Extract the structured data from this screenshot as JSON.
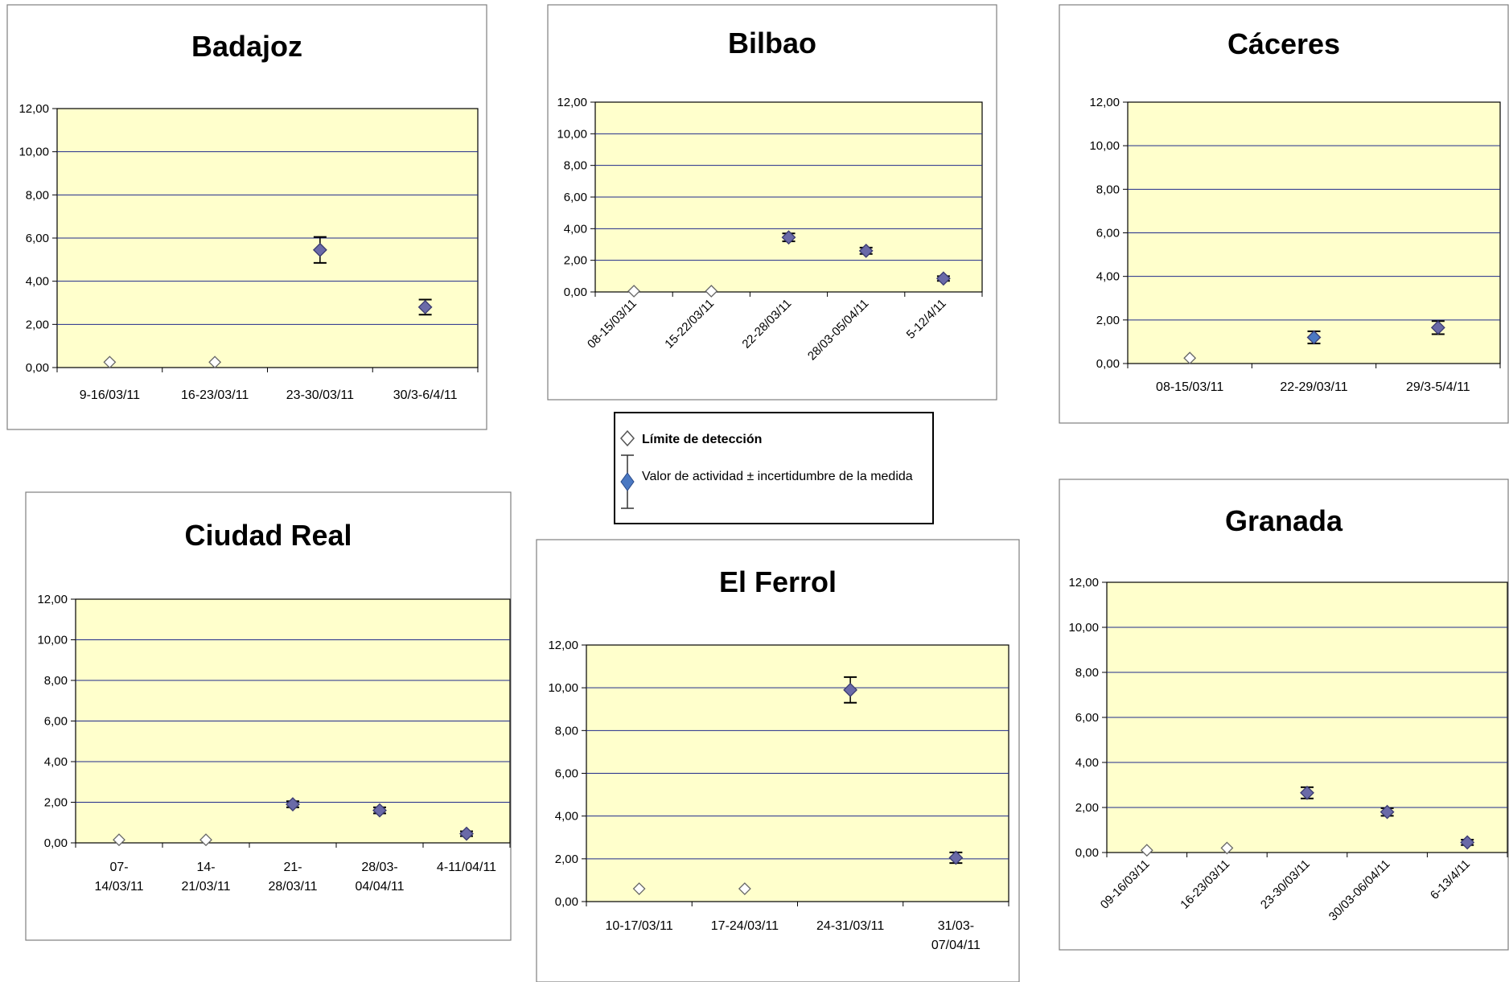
{
  "colors": {
    "plot_bg": "#ffffcc",
    "grid": "#1f2a8a",
    "marker_fill": "#6a6aa8",
    "marker_fill_blue": "#4a78c2",
    "marker_open": "#ffffff",
    "errorbar": "#000000"
  },
  "legend": {
    "detection_limit": "Límite de detección",
    "activity_value": "Valor de actividad ± incertidumbre de la medida"
  },
  "chart_data": [
    {
      "id": "badajoz",
      "type": "scatter",
      "title": "Badajoz",
      "ylim": [
        0,
        12
      ],
      "yticks": [
        "0,00",
        "2,00",
        "4,00",
        "6,00",
        "8,00",
        "10,00",
        "12,00"
      ],
      "grid": true,
      "label_rotation": 0,
      "categories": [
        [
          "9-16/03/11"
        ],
        [
          "16-23/03/11"
        ],
        [
          "23-30/03/11"
        ],
        [
          "30/3-6/4/11"
        ]
      ],
      "points": [
        {
          "cat": 0,
          "value": 0.25,
          "kind": "limit"
        },
        {
          "cat": 1,
          "value": 0.25,
          "kind": "limit"
        },
        {
          "cat": 2,
          "value": 5.45,
          "err": 0.6,
          "kind": "value"
        },
        {
          "cat": 3,
          "value": 2.8,
          "err": 0.35,
          "kind": "value"
        }
      ]
    },
    {
      "id": "bilbao",
      "type": "scatter",
      "title": "Bilbao",
      "ylim": [
        0,
        12
      ],
      "yticks": [
        "0,00",
        "2,00",
        "4,00",
        "6,00",
        "8,00",
        "10,00",
        "12,00"
      ],
      "grid": true,
      "label_rotation": -45,
      "categories": [
        [
          "08-15/03/11"
        ],
        [
          "15-22/03/11"
        ],
        [
          "22-28/03/11"
        ],
        [
          "28/03-05/04/11"
        ],
        [
          "5-12/4/11"
        ]
      ],
      "points": [
        {
          "cat": 0,
          "value": 0.05,
          "kind": "limit"
        },
        {
          "cat": 1,
          "value": 0.05,
          "kind": "limit"
        },
        {
          "cat": 2,
          "value": 3.45,
          "err": 0.25,
          "kind": "value"
        },
        {
          "cat": 3,
          "value": 2.6,
          "err": 0.2,
          "kind": "value"
        },
        {
          "cat": 4,
          "value": 0.85,
          "err": 0.15,
          "kind": "value"
        }
      ]
    },
    {
      "id": "caceres",
      "type": "scatter",
      "title": "Cáceres",
      "ylim": [
        0,
        12
      ],
      "yticks": [
        "0,00",
        "2,00",
        "4,00",
        "6,00",
        "8,00",
        "10,00",
        "12,00"
      ],
      "grid": true,
      "label_rotation": 0,
      "categories": [
        [
          "08-15/03/11"
        ],
        [
          "22-29/03/11"
        ],
        [
          "29/3-5/4/11"
        ]
      ],
      "points": [
        {
          "cat": 0,
          "value": 0.25,
          "kind": "limit"
        },
        {
          "cat": 1,
          "value": 1.2,
          "err": 0.28,
          "kind": "value",
          "blue": true
        },
        {
          "cat": 2,
          "value": 1.65,
          "err": 0.3,
          "kind": "value"
        }
      ]
    },
    {
      "id": "ciudad-real",
      "type": "scatter",
      "title": "Ciudad Real",
      "ylim": [
        0,
        12
      ],
      "yticks": [
        "0,00",
        "2,00",
        "4,00",
        "6,00",
        "8,00",
        "10,00",
        "12,00"
      ],
      "grid": true,
      "label_rotation": 0,
      "categories": [
        [
          "07-",
          "14/03/11"
        ],
        [
          "14-",
          "21/03/11"
        ],
        [
          "21-",
          "28/03/11"
        ],
        [
          "28/03-",
          "04/04/11"
        ],
        [
          "4-11/04/11"
        ]
      ],
      "points": [
        {
          "cat": 0,
          "value": 0.15,
          "kind": "limit"
        },
        {
          "cat": 1,
          "value": 0.15,
          "kind": "limit"
        },
        {
          "cat": 2,
          "value": 1.9,
          "err": 0.15,
          "kind": "value"
        },
        {
          "cat": 3,
          "value": 1.6,
          "err": 0.15,
          "kind": "value"
        },
        {
          "cat": 4,
          "value": 0.45,
          "err": 0.12,
          "kind": "value"
        }
      ]
    },
    {
      "id": "el-ferrol",
      "type": "scatter",
      "title": "El Ferrol",
      "ylim": [
        0,
        12
      ],
      "yticks": [
        "0,00",
        "2,00",
        "4,00",
        "6,00",
        "8,00",
        "10,00",
        "12,00"
      ],
      "grid": true,
      "label_rotation": 0,
      "categories": [
        [
          "10-17/03/11"
        ],
        [
          "17-24/03/11"
        ],
        [
          "24-31/03/11"
        ],
        [
          "31/03-",
          "07/04/11"
        ]
      ],
      "points": [
        {
          "cat": 0,
          "value": 0.6,
          "kind": "limit"
        },
        {
          "cat": 1,
          "value": 0.6,
          "kind": "limit"
        },
        {
          "cat": 2,
          "value": 9.9,
          "err": 0.6,
          "kind": "value"
        },
        {
          "cat": 3,
          "value": 2.05,
          "err": 0.25,
          "kind": "value"
        }
      ]
    },
    {
      "id": "granada",
      "type": "scatter",
      "title": "Granada",
      "ylim": [
        0,
        12
      ],
      "yticks": [
        "0,00",
        "2,00",
        "4,00",
        "6,00",
        "8,00",
        "10,00",
        "12,00"
      ],
      "grid": true,
      "label_rotation": -45,
      "categories": [
        [
          "09-16/03/11"
        ],
        [
          "16-23/03/11"
        ],
        [
          "23-30/03/11"
        ],
        [
          "30/03-06/04/11"
        ],
        [
          "6-13/4/11"
        ]
      ],
      "points": [
        {
          "cat": 0,
          "value": 0.1,
          "kind": "limit"
        },
        {
          "cat": 1,
          "value": 0.2,
          "kind": "limit"
        },
        {
          "cat": 2,
          "value": 2.65,
          "err": 0.25,
          "kind": "value"
        },
        {
          "cat": 3,
          "value": 1.8,
          "err": 0.17,
          "kind": "value"
        },
        {
          "cat": 4,
          "value": 0.45,
          "err": 0.12,
          "kind": "value"
        }
      ]
    }
  ]
}
